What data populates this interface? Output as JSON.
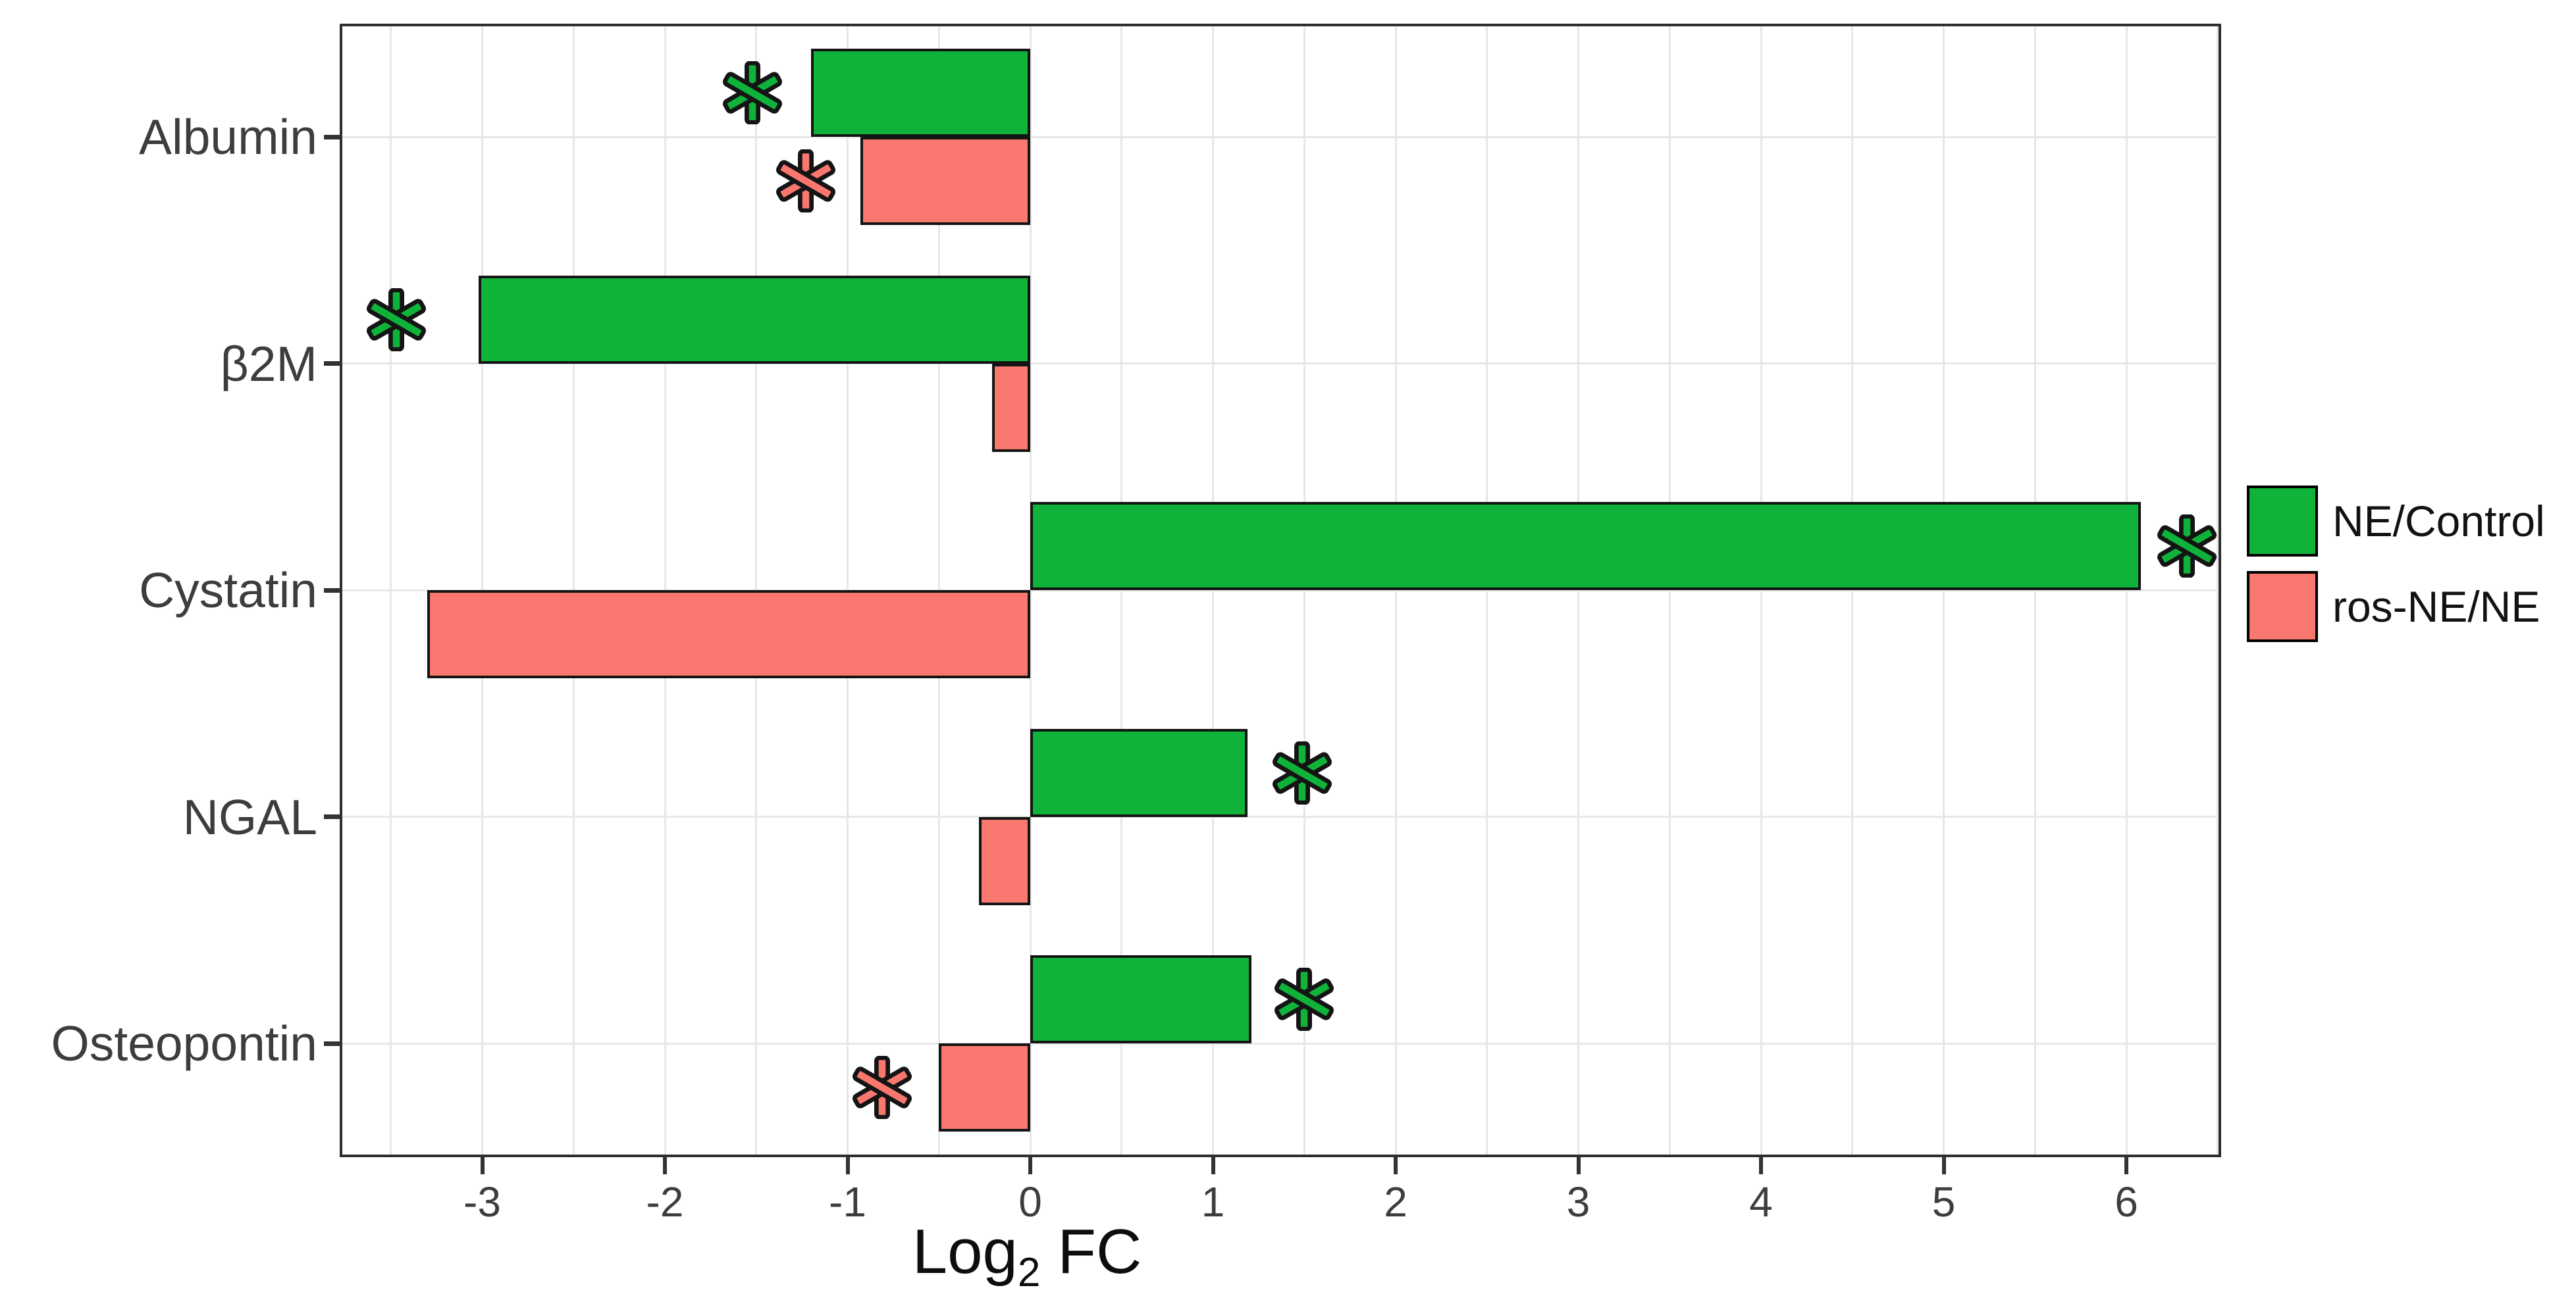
{
  "figure": {
    "background": "#ffffff"
  },
  "chart_data": {
    "type": "bar",
    "orientation": "horizontal",
    "title": "",
    "xlabel": "Log2 FC",
    "xlabel_parts": {
      "base": "Log",
      "sub": "2",
      "rest": "FC"
    },
    "ylabel": "",
    "categories": [
      "Albumin",
      "β2M",
      "Cystatin",
      "NGAL",
      "Osteopontin"
    ],
    "series": [
      {
        "name": "NE/Control",
        "color": "#10b33a",
        "values": [
          -1.2,
          -3.02,
          6.08,
          1.19,
          1.21
        ]
      },
      {
        "name": "ros-NE/NE",
        "color": "#f8776e",
        "values": [
          -0.93,
          -0.21,
          -3.3,
          -0.28,
          -0.5
        ]
      }
    ],
    "significance_markers": [
      {
        "category": "Albumin",
        "series": "NE/Control",
        "x": -1.52
      },
      {
        "category": "Albumin",
        "series": "ros-NE/NE",
        "x": -1.23
      },
      {
        "category": "β2M",
        "series": "NE/Control",
        "x": -3.47
      },
      {
        "category": "Cystatin",
        "series": "NE/Control",
        "x": 6.33
      },
      {
        "category": "NGAL",
        "series": "NE/Control",
        "x": 1.49
      },
      {
        "category": "Osteopontin",
        "series": "NE/Control",
        "x": 1.5
      },
      {
        "category": "Osteopontin",
        "series": "ros-NE/NE",
        "x": -0.81
      }
    ],
    "x_ticks": [
      -3,
      -2,
      -1,
      0,
      1,
      2,
      3,
      4,
      5,
      6
    ],
    "xlim": [
      -3.77,
      6.5
    ],
    "grid": {
      "x_step": 0.5,
      "color": "#e7e7e7",
      "horizontal_at_category_centers": true
    },
    "bar_outline_color": "#141414",
    "axis_text_color": "#3d3d3d",
    "legend_position": "right"
  },
  "legend": {
    "items": [
      {
        "label": "NE/Control",
        "color": "#10b33a"
      },
      {
        "label": "ros-NE/NE",
        "color": "#f8776e"
      }
    ]
  }
}
